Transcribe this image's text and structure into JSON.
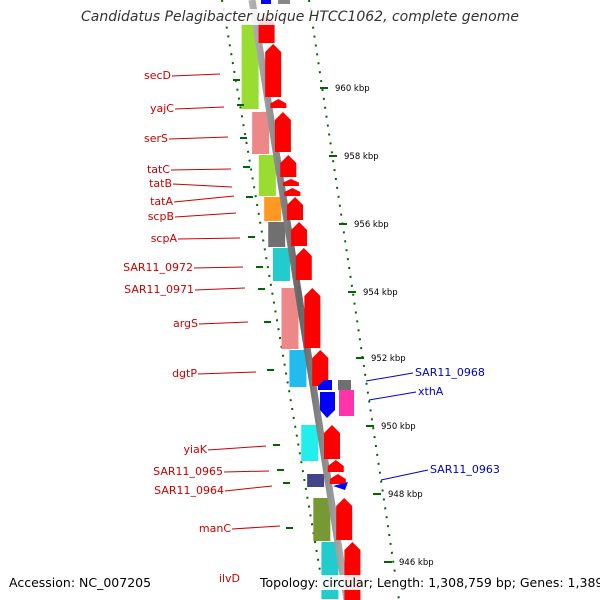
{
  "title": "Candidatus Pelagibacter ubique HTCC1062, complete genome",
  "accession": "Accession: NC_007205",
  "summary": "Topology: circular; Length: 1,308,759 bp; Genes: 1,389",
  "colors": {
    "forward_gene": "#ff0000",
    "reverse_gene": "#0000ff",
    "forward_label": "#cc0000",
    "reverse_label": "#0000cc",
    "tick": "#006600",
    "backbone": "#888888"
  },
  "ticks": [
    "960 kbp",
    "958 kbp",
    "956 kbp",
    "954 kbp",
    "952 kbp",
    "950 kbp",
    "948 kbp",
    "946 kbp"
  ],
  "forward_labels": [
    "secD",
    "yajC",
    "serS",
    "tatC",
    "tatB",
    "tatA",
    "scpB",
    "scpA",
    "SAR11_0972",
    "SAR11_0971",
    "argS",
    "dgtP",
    "yiaK",
    "SAR11_0965",
    "SAR11_0964",
    "manC",
    "ilvD"
  ],
  "reverse_labels": [
    "SAR11_0968",
    "xthA",
    "SAR11_0963"
  ]
}
